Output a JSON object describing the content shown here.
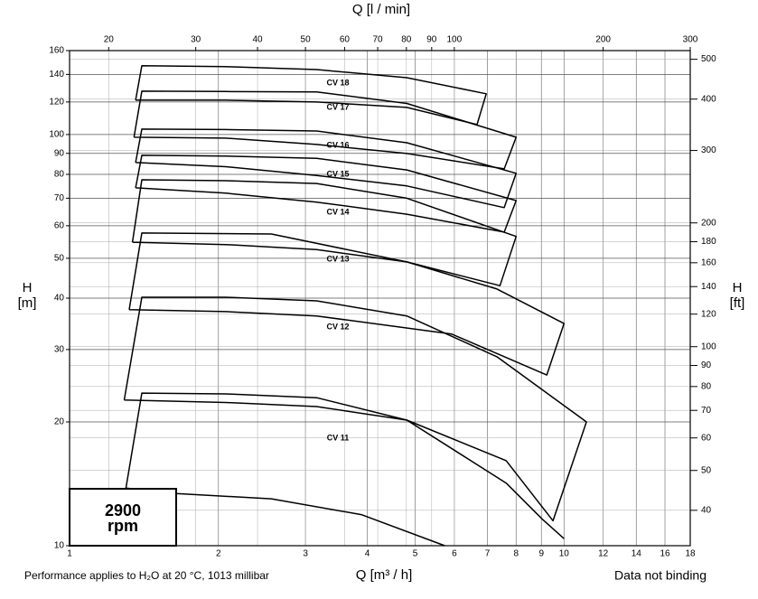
{
  "chart_data": {
    "type": "line",
    "log_x": true,
    "log_y": true,
    "grid": true,
    "x_title": "Q [m³ / h]",
    "x2_title": "Q [l / min]",
    "y_title": "H",
    "y_unit": "[m]",
    "y2_title": "H",
    "y2_unit": "[ft]",
    "speed_lines": [
      "2900",
      "rpm"
    ],
    "footnote": "Performance applies to H₂O at 20 °C, 1013 millibar",
    "disclaimer": "Data not binding",
    "xlim": [
      1,
      18
    ],
    "xticks": [
      1,
      2,
      3,
      4,
      5,
      6,
      7,
      8,
      9,
      10,
      12,
      14,
      16,
      18
    ],
    "x2lim": [
      16.67,
      300
    ],
    "x2ticks": [
      20,
      30,
      40,
      50,
      60,
      70,
      80,
      90,
      100,
      200,
      300
    ],
    "ylim": [
      10,
      160
    ],
    "yticks": [
      10,
      20,
      30,
      40,
      50,
      60,
      70,
      80,
      90,
      100,
      120,
      140,
      160
    ],
    "y2lim": [
      32.81,
      524.9
    ],
    "y2ticks": [
      40,
      50,
      60,
      70,
      80,
      90,
      100,
      120,
      140,
      160,
      180,
      200,
      300,
      400,
      500
    ],
    "series": [
      {
        "name": "CV 18",
        "color": "#000000",
        "x": [
          1.36,
          1.4,
          2.07,
          3.16,
          4.81,
          6.96,
          6.67,
          4.81,
          3.16,
          2.07,
          1.36
        ],
        "values": [
          121.2,
          147,
          146.2,
          143.9,
          137.5,
          125.6,
          105.7,
          116.4,
          120,
          121.2,
          121.2
        ]
      },
      {
        "name": "CV 17",
        "color": "#000000",
        "x": [
          1.35,
          1.4,
          2.07,
          3.16,
          4.81,
          8,
          7.57,
          4.81,
          3.16,
          2.07,
          1.35
        ],
        "values": [
          98.5,
          127.5,
          127.2,
          127,
          119,
          98.5,
          82.5,
          89.9,
          94.6,
          98,
          98.5
        ]
      },
      {
        "name": "CV 16",
        "color": "#000000",
        "x": [
          1.36,
          1.4,
          2.07,
          3.16,
          4.81,
          8,
          7.57,
          4.81,
          3.16,
          2.07,
          1.36
        ],
        "values": [
          85.5,
          103.1,
          102.8,
          102,
          95.5,
          80.5,
          66.4,
          75,
          79.5,
          83.5,
          85.5
        ]
      },
      {
        "name": "CV 15",
        "color": "#000000",
        "x": [
          1.36,
          1.4,
          2.07,
          3.16,
          4.81,
          8,
          7.57,
          4.81,
          3.16,
          2.07,
          1.36
        ],
        "values": [
          74.2,
          89,
          88.6,
          87.5,
          82,
          69.1,
          57.9,
          64,
          68.5,
          72,
          74.2
        ]
      },
      {
        "name": "CV 14",
        "color": "#000000",
        "x": [
          1.34,
          1.4,
          2.07,
          3.16,
          4.81,
          8,
          7.42,
          4.81,
          3.16,
          2.07,
          1.34
        ],
        "values": [
          54.7,
          77.6,
          77.2,
          76,
          70,
          56.5,
          42.9,
          49,
          52.5,
          54,
          54.7
        ]
      },
      {
        "name": "CV 13",
        "color": "#000000",
        "x": [
          1.32,
          1.4,
          2.56,
          4.81,
          7.32,
          10,
          9.23,
          5.93,
          3.16,
          2.07,
          1.32
        ],
        "values": [
          37.5,
          57.6,
          57.3,
          49,
          42.1,
          34.7,
          26,
          32.7,
          36.2,
          37.1,
          37.5
        ]
      },
      {
        "name": "CV 12",
        "color": "#000000",
        "x": [
          1.29,
          1.4,
          2.07,
          3.16,
          4.81,
          7.32,
          11.1,
          9.5,
          7.64,
          4.81,
          3.16,
          2.07,
          1.29
        ],
        "values": [
          22.6,
          40.2,
          40.2,
          39.4,
          36.2,
          28.8,
          20,
          11.5,
          16.1,
          20.2,
          21.8,
          22.3,
          22.6
        ]
      },
      {
        "name": "CV 11",
        "color": "#000000",
        "x": [
          5.74,
          3.89,
          2.56,
          1.64,
          1.3,
          1.4,
          2.07,
          3.16,
          4.81,
          7.64,
          9.04,
          10
        ],
        "values": [
          10,
          11.9,
          13.0,
          13.4,
          13.8,
          23.5,
          23.4,
          22.9,
          20.2,
          14.2,
          11.6,
          10.4
        ]
      }
    ]
  }
}
